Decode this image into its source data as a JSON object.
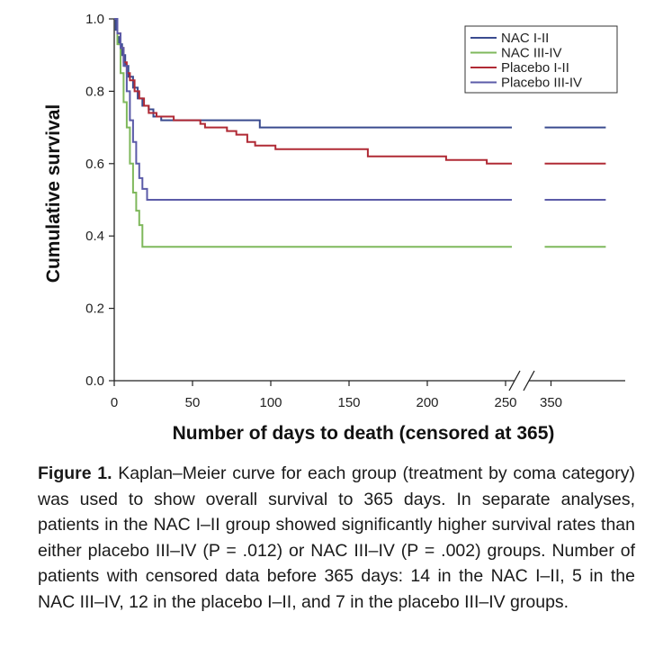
{
  "chart_data": {
    "type": "line",
    "subtype": "kaplan-meier step",
    "xlabel": "Number of days to death (censored at 365)",
    "ylabel": "Cumulative survival",
    "ylim": [
      0,
      1
    ],
    "y_ticks": [
      "0.0",
      "0.2",
      "0.4",
      "0.6",
      "0.8",
      "1.0"
    ],
    "x_ticks": [
      "0",
      "50",
      "100",
      "150",
      "200",
      "250",
      "350"
    ],
    "x_axis_break": "between 250 and 350 (double-slash marks)",
    "legend_position": "top-right",
    "series": [
      {
        "name": "NAC I-II",
        "color": "#3a4b8f",
        "points": [
          [
            0,
            1.0
          ],
          [
            1,
            0.97
          ],
          [
            2,
            0.95
          ],
          [
            3,
            0.93
          ],
          [
            5,
            0.9
          ],
          [
            7,
            0.87
          ],
          [
            9,
            0.84
          ],
          [
            12,
            0.81
          ],
          [
            15,
            0.78
          ],
          [
            18,
            0.76
          ],
          [
            22,
            0.75
          ],
          [
            25,
            0.73
          ],
          [
            30,
            0.72
          ],
          [
            93,
            0.7
          ],
          [
            254,
            0.7
          ],
          [
            346,
            0.7
          ],
          [
            385,
            0.7
          ]
        ]
      },
      {
        "name": "NAC III-IV",
        "color": "#7fb85c",
        "points": [
          [
            0,
            1.0
          ],
          [
            2,
            0.93
          ],
          [
            4,
            0.85
          ],
          [
            6,
            0.77
          ],
          [
            8,
            0.7
          ],
          [
            10,
            0.6
          ],
          [
            12,
            0.52
          ],
          [
            14,
            0.47
          ],
          [
            16,
            0.43
          ],
          [
            18,
            0.37
          ],
          [
            254,
            0.37
          ],
          [
            346,
            0.37
          ],
          [
            385,
            0.37
          ]
        ]
      },
      {
        "name": "Placebo I-II",
        "color": "#b02a35",
        "points": [
          [
            0,
            1.0
          ],
          [
            2,
            0.96
          ],
          [
            4,
            0.92
          ],
          [
            6,
            0.88
          ],
          [
            8,
            0.85
          ],
          [
            10,
            0.83
          ],
          [
            13,
            0.8
          ],
          [
            16,
            0.78
          ],
          [
            19,
            0.76
          ],
          [
            22,
            0.74
          ],
          [
            27,
            0.73
          ],
          [
            38,
            0.72
          ],
          [
            55,
            0.71
          ],
          [
            58,
            0.7
          ],
          [
            72,
            0.69
          ],
          [
            78,
            0.68
          ],
          [
            85,
            0.66
          ],
          [
            90,
            0.65
          ],
          [
            103,
            0.64
          ],
          [
            162,
            0.62
          ],
          [
            212,
            0.61
          ],
          [
            238,
            0.6
          ],
          [
            254,
            0.6
          ],
          [
            346,
            0.6
          ],
          [
            385,
            0.6
          ]
        ]
      },
      {
        "name": "Placebo III-IV",
        "color": "#5b5ba8",
        "points": [
          [
            0,
            1.0
          ],
          [
            2,
            0.96
          ],
          [
            4,
            0.92
          ],
          [
            6,
            0.87
          ],
          [
            8,
            0.8
          ],
          [
            10,
            0.72
          ],
          [
            12,
            0.66
          ],
          [
            14,
            0.6
          ],
          [
            16,
            0.56
          ],
          [
            18,
            0.53
          ],
          [
            21,
            0.5
          ],
          [
            254,
            0.5
          ],
          [
            346,
            0.5
          ],
          [
            385,
            0.5
          ]
        ]
      }
    ]
  },
  "caption": {
    "label": "Figure 1.",
    "text": " Kaplan–Meier curve for each group (treatment by coma category) was used to show overall survival to 365 days. In separate analyses, patients in the NAC I–II group showed significantly higher survival rates than either placebo III–IV (P = .012) or NAC III–IV (P = .002) groups. Number of patients with censored data before 365 days: 14 in the NAC I–II, 5 in the NAC III–IV, 12 in the placebo I–II, and 7 in the placebo III–IV groups."
  }
}
